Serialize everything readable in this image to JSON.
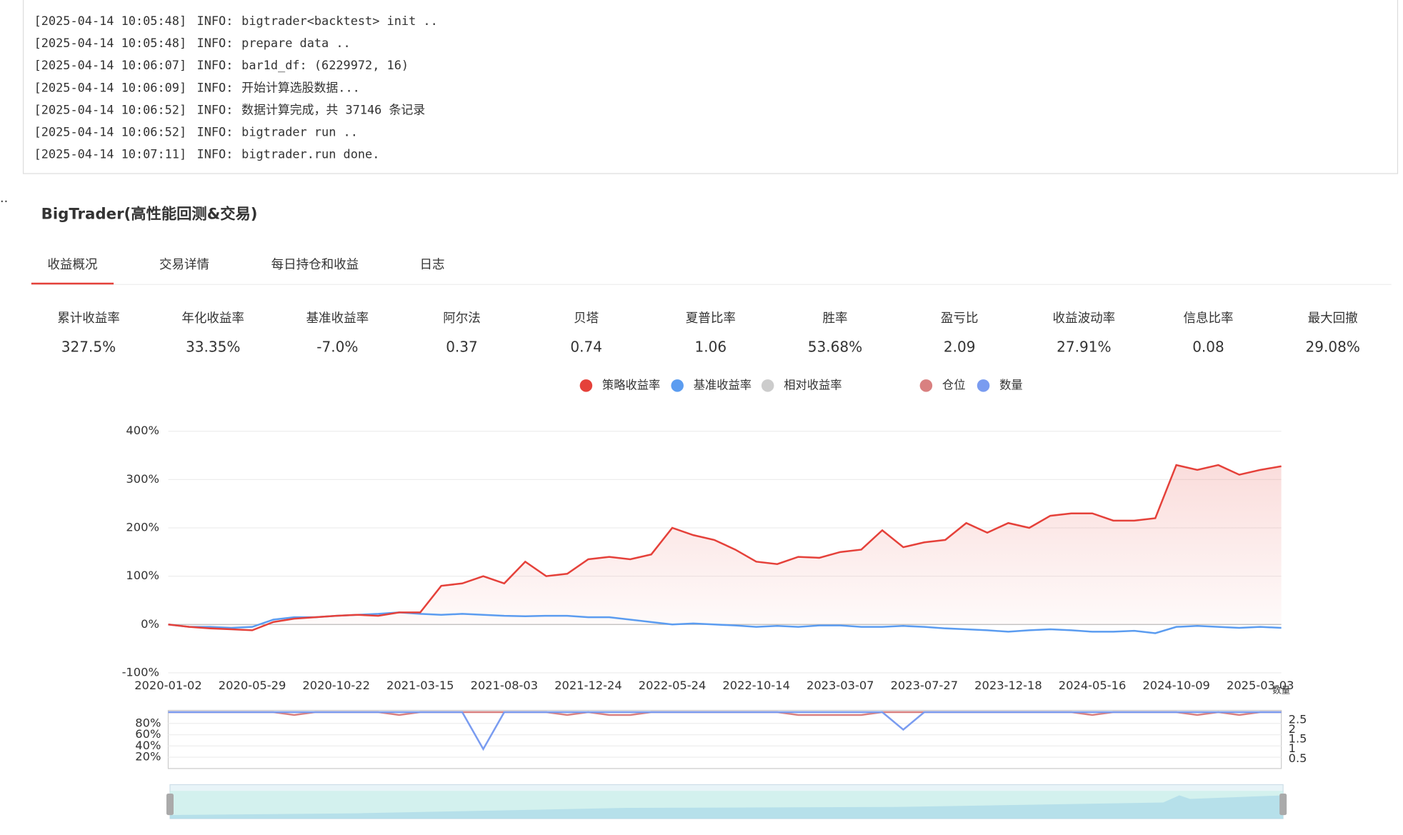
{
  "log": [
    {
      "time": "[2025-04-14 10:05:48]",
      "level": "INFO:",
      "msg": "bigtrader<backtest> init .."
    },
    {
      "time": "[2025-04-14 10:05:48]",
      "level": "INFO:",
      "msg": "prepare data .."
    },
    {
      "time": "[2025-04-14 10:06:07]",
      "level": "INFO:",
      "msg": "bar1d_df: (6229972, 16)"
    },
    {
      "time": "[2025-04-14 10:06:09]",
      "level": "INFO:",
      "msg": "开始计算选股数据..."
    },
    {
      "time": "[2025-04-14 10:06:52]",
      "level": "INFO:",
      "msg": "数据计算完成，共 37146 条记录"
    },
    {
      "time": "[2025-04-14 10:06:52]",
      "level": "INFO:",
      "msg": "bigtrader run .."
    },
    {
      "time": "[2025-04-14 10:07:11]",
      "level": "INFO:",
      "msg": "bigtrader.run done."
    }
  ],
  "prompt": "..",
  "title": "BigTrader(高性能回测&交易)",
  "tabs": [
    "收益概况",
    "交易详情",
    "每日持仓和收益",
    "日志"
  ],
  "metrics": [
    {
      "label": "累计收益率",
      "value": "327.5%",
      "color": "#e5413a"
    },
    {
      "label": "年化收益率",
      "value": "33.35%",
      "color": "#e5413a"
    },
    {
      "label": "基准收益率",
      "value": "-7.0%",
      "color": "#1aa66a"
    },
    {
      "label": "阿尔法",
      "value": "0.37",
      "color": "#e5413a"
    },
    {
      "label": "贝塔",
      "value": "0.74",
      "color": "#e5413a"
    },
    {
      "label": "夏普比率",
      "value": "1.06",
      "color": "#e5413a"
    },
    {
      "label": "胜率",
      "value": "53.68%",
      "color": "#e5413a"
    },
    {
      "label": "盈亏比",
      "value": "2.09",
      "color": "#e5413a"
    },
    {
      "label": "收益波动率",
      "value": "27.91%",
      "color": "#e5413a"
    },
    {
      "label": "信息比率",
      "value": "0.08",
      "color": "#e5413a"
    },
    {
      "label": "最大回撤",
      "value": "29.08%",
      "color": "#e5413a"
    }
  ],
  "chart_data": [
    {
      "type": "line",
      "inactive_legend": [
        "相对收益率"
      ],
      "categories": [
        "2020-01-02",
        null,
        null,
        null,
        "2020-05-29",
        null,
        null,
        null,
        "2020-10-22",
        null,
        null,
        null,
        "2021-03-15",
        null,
        null,
        null,
        "2021-08-03",
        null,
        null,
        null,
        "2021-12-24",
        null,
        null,
        null,
        "2022-05-24",
        null,
        null,
        null,
        "2022-10-14",
        null,
        null,
        null,
        "2023-03-07",
        null,
        null,
        null,
        "2023-07-27",
        null,
        null,
        null,
        "2023-12-18",
        null,
        null,
        null,
        "2024-05-16",
        null,
        null,
        null,
        "2024-10-09",
        null,
        null,
        null,
        "2025-03-03",
        null
      ],
      "series": [
        {
          "name": "策略收益率",
          "color": "#e5413a",
          "values": [
            0,
            -5,
            -8,
            -10,
            -12,
            5,
            12,
            15,
            18,
            20,
            18,
            25,
            25,
            80,
            85,
            100,
            85,
            130,
            100,
            105,
            135,
            140,
            135,
            145,
            200,
            185,
            175,
            155,
            130,
            125,
            140,
            138,
            150,
            155,
            195,
            160,
            170,
            175,
            210,
            190,
            210,
            200,
            225,
            230,
            230,
            215,
            215,
            220,
            330,
            320,
            330,
            310,
            320,
            327.5
          ]
        },
        {
          "name": "基准收益率",
          "color": "#5b9cf0",
          "values": [
            0,
            -5,
            -5,
            -7,
            -5,
            10,
            15,
            15,
            18,
            20,
            22,
            25,
            22,
            20,
            22,
            20,
            18,
            17,
            18,
            18,
            15,
            15,
            10,
            5,
            0,
            2,
            0,
            -2,
            -5,
            -3,
            -5,
            -2,
            -2,
            -5,
            -5,
            -3,
            -5,
            -8,
            -10,
            -12,
            -15,
            -12,
            -10,
            -12,
            -15,
            -15,
            -13,
            -18,
            -5,
            -3,
            -5,
            -7,
            -5,
            -7
          ]
        }
      ],
      "ylim": [
        -100,
        400
      ],
      "yticks": [
        {
          "value": -100,
          "label": "-100%"
        },
        {
          "value": 0,
          "label": "0%"
        },
        {
          "value": 100,
          "label": "100%"
        },
        {
          "value": 200,
          "label": "200%"
        },
        {
          "value": 300,
          "label": "300%"
        },
        {
          "value": 400,
          "label": "400%"
        }
      ],
      "grid": true
    },
    {
      "type": "line",
      "y2label": "数量",
      "series": [
        {
          "name": "仓位",
          "color": "#d98080",
          "values": [
            100,
            100,
            100,
            100,
            100,
            100,
            95,
            100,
            100,
            100,
            100,
            95,
            100,
            100,
            100,
            100,
            100,
            100,
            100,
            95,
            100,
            95,
            95,
            100,
            100,
            100,
            100,
            100,
            100,
            100,
            95,
            95,
            95,
            95,
            100,
            100,
            100,
            100,
            100,
            100,
            100,
            100,
            100,
            100,
            95,
            100,
            100,
            100,
            100,
            95,
            100,
            95,
            100,
            100
          ]
        },
        {
          "name": "数量",
          "color": "#7a9cf0",
          "axis": "y2",
          "values": [
            2.9,
            2.9,
            2.9,
            2.9,
            2.9,
            2.9,
            2.9,
            2.9,
            2.9,
            2.9,
            2.9,
            2.9,
            2.9,
            2.9,
            2.9,
            1,
            2.9,
            2.9,
            2.9,
            2.9,
            2.9,
            2.9,
            2.9,
            2.9,
            2.9,
            2.9,
            2.9,
            2.9,
            2.9,
            2.9,
            2.9,
            2.9,
            2.9,
            2.9,
            2.9,
            2,
            2.9,
            2.9,
            2.9,
            2.9,
            2.9,
            2.9,
            2.9,
            2.9,
            2.9,
            2.9,
            2.9,
            2.9,
            2.9,
            2.9,
            2.9,
            2.9,
            2.9,
            2.9
          ]
        }
      ],
      "ylim": [
        0,
        100
      ],
      "yticks": [
        {
          "value": 20,
          "label": "20%"
        },
        {
          "value": 40,
          "label": "40%"
        },
        {
          "value": 60,
          "label": "60%"
        },
        {
          "value": 80,
          "label": "80%"
        }
      ],
      "y2lim": [
        0,
        2.9
      ],
      "y2ticks": [
        0.5,
        1,
        1.5,
        2,
        2.5
      ]
    }
  ]
}
